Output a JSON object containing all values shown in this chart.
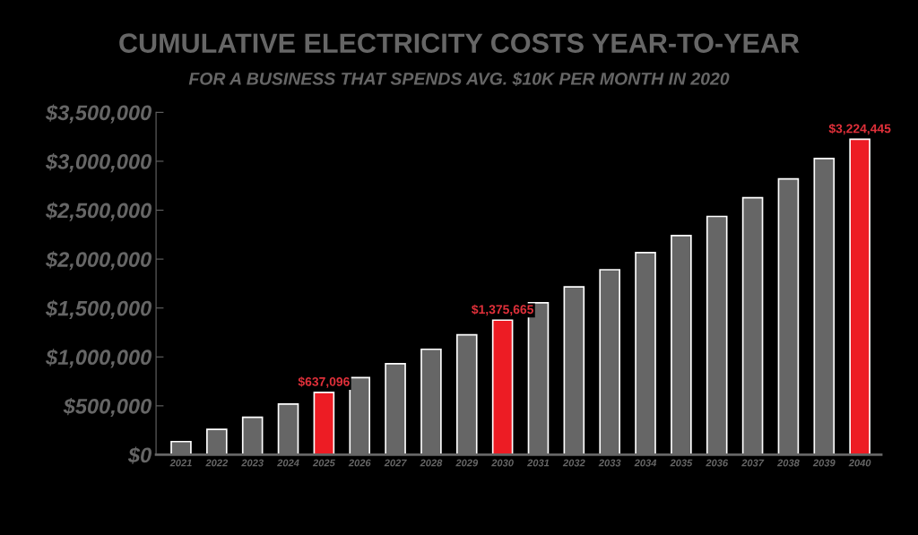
{
  "chart_data": {
    "type": "bar",
    "title": "CUMULATIVE ELECTRICITY COSTS YEAR-TO-YEAR",
    "subtitle": "FOR A BUSINESS THAT SPENDS AVG. $10K PER MONTH IN 2020",
    "categories": [
      "2021",
      "2022",
      "2023",
      "2024",
      "2025",
      "2026",
      "2027",
      "2028",
      "2029",
      "2030",
      "2031",
      "2032",
      "2033",
      "2034",
      "2035",
      "2036",
      "2037",
      "2038",
      "2039",
      "2040"
    ],
    "values": [
      135000,
      260000,
      383000,
      518000,
      637096,
      788000,
      931000,
      1078000,
      1226000,
      1375665,
      1554000,
      1716000,
      1891000,
      2066000,
      2240000,
      2436000,
      2627000,
      2820000,
      3028000,
      3224445
    ],
    "colors": [
      "#666666",
      "#666666",
      "#666666",
      "#666666",
      "#ed1c24",
      "#666666",
      "#666666",
      "#666666",
      "#666666",
      "#ed1c24",
      "#666666",
      "#666666",
      "#666666",
      "#666666",
      "#666666",
      "#666666",
      "#666666",
      "#666666",
      "#666666",
      "#ed1c24"
    ],
    "value_labels": [
      null,
      null,
      null,
      null,
      "$637,096",
      null,
      null,
      null,
      null,
      "$1,375,665",
      null,
      null,
      null,
      null,
      null,
      null,
      null,
      null,
      null,
      "$3,224,445"
    ],
    "ylim": [
      0,
      3500000
    ],
    "yticks": [
      {
        "value": 0,
        "label": "$0"
      },
      {
        "value": 500000,
        "label": "$500,000"
      },
      {
        "value": 1000000,
        "label": "$1,000,000"
      },
      {
        "value": 1500000,
        "label": "$1,500,000"
      },
      {
        "value": 2000000,
        "label": "$2,000,000"
      },
      {
        "value": 2500000,
        "label": "$2,500,000"
      },
      {
        "value": 3000000,
        "label": "$3,000,000"
      },
      {
        "value": 3500000,
        "label": "$3,500,000"
      }
    ],
    "grid": false,
    "legend": false
  }
}
